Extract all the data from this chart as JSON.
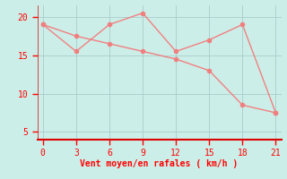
{
  "line1_x": [
    0,
    3,
    6,
    9,
    12,
    15,
    18,
    21
  ],
  "line1_y": [
    19,
    15.5,
    19,
    20.5,
    15.5,
    17,
    19,
    7.5
  ],
  "line2_x": [
    0,
    3,
    6,
    9,
    12,
    15,
    18,
    21
  ],
  "line2_y": [
    19,
    17.5,
    16.5,
    15.5,
    14.5,
    13.0,
    8.5,
    7.5
  ],
  "line_color": "#f08080",
  "background_color": "#cceee8",
  "grid_color": "#aacccc",
  "xlabel": "Vent moyen/en rafales ( km/h )",
  "xlabel_color": "#ff0000",
  "tick_color": "#ff0000",
  "axis_line_color": "#dd0000",
  "xlim": [
    -0.5,
    21.5
  ],
  "ylim": [
    4,
    21.5
  ],
  "xticks": [
    0,
    3,
    6,
    9,
    12,
    15,
    18,
    21
  ],
  "yticks": [
    5,
    10,
    15,
    20
  ],
  "marker_size": 3,
  "line_width": 1.0
}
